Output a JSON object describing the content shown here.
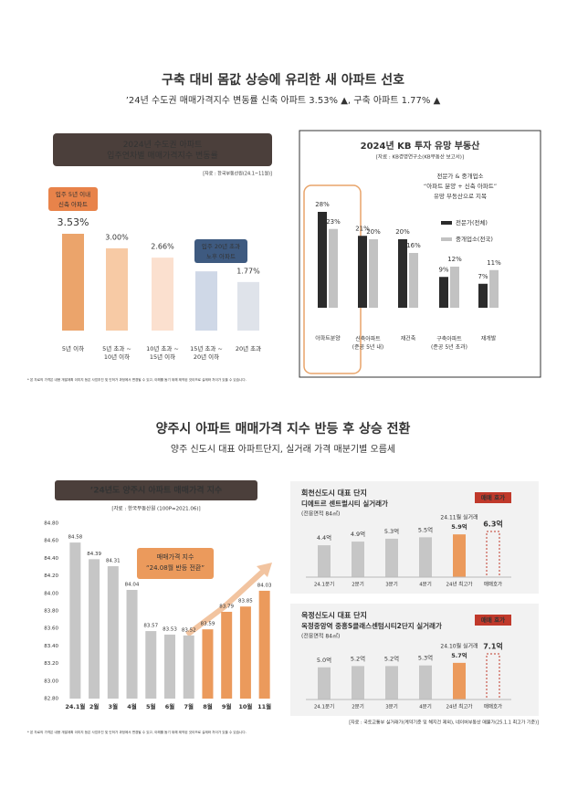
{
  "header1": {
    "title": "구축 대비 몸값 상승에 유리한 새 아파트 선호",
    "subtitle": "’24년 수도권 매매가격지수 변동률 신축 아파트 3.53% ▲, 구축 아파트 1.77% ▲"
  },
  "header2": {
    "title": "양주시 아파트 매매가격 지수 반등 후 상승 전환",
    "subtitle": "양주 신도시 대표 아파트단지, 실거래 가격 매분기별 오름세"
  },
  "footnotes": [
    "* 본 자료의 가격은 내용 개발계획 이미지 등은 사업추진 및 인허가 과정에서 변경될 수 있고, 이해를 돕기 위해 제작된 것이므로 실제와 차이가 있을 수 있습니다.",
    "* 본 자료의 가격은 내용 개발계획 이미지 등은 사업추진 및 인허가 과정에서 변경될 수 있고, 이해를 돕기 위해 제작된 것이므로 실제와 차이가 있을 수 있습니다."
  ],
  "chart_data": [
    {
      "type": "bar",
      "title": "2024년 수도권 아파트\n입주연차별 매매가격지수 변동률",
      "source": "[자료 : 한국부동산원(24.1~11월)]",
      "categories": [
        "5년 이하",
        "5년 초과 ~\n10년 이하",
        "10년 초과 ~\n15년 이하",
        "15년 초과 ~\n20년 이하",
        "20년 초과"
      ],
      "values": [
        3.53,
        3.0,
        2.66,
        2.16,
        1.77
      ],
      "value_labels": [
        "3.53%",
        "3.00%",
        "2.66%",
        "2.16%",
        "1.77%"
      ],
      "colors": [
        "#eba46b",
        "#f7caa5",
        "#fbe0cf",
        "#cfd8e7",
        "#dfe3ea"
      ],
      "annotations": [
        {
          "text": "입주 5년 이내\n신축 아파트",
          "color": "#e8834a"
        },
        {
          "text": "입주 20년 초과\n노후 아파트",
          "color": "#3e5a80"
        }
      ]
    },
    {
      "type": "bar",
      "title": "2024년 KB 투자 유망 부동산",
      "source": "[자료 : KB경영연구소(KB부동산 보고서)]",
      "categories": [
        "아파트분양",
        "신축아파트\n(준공 5년 내)",
        "재건축",
        "구축아파트\n(준공 5년 초과)",
        "재개발"
      ],
      "series": [
        {
          "name": "전문가(전체)",
          "color": "#2b2b2b",
          "values": [
            28,
            21,
            20,
            9,
            7
          ],
          "value_labels": [
            "28%",
            "21%",
            "20%",
            "9%",
            "7%"
          ]
        },
        {
          "name": "중개업소(전국)",
          "color": "#c2c2c2",
          "values": [
            23,
            20,
            16,
            12,
            11
          ],
          "value_labels": [
            "23%",
            "20%",
            "16%",
            "12%",
            "11%"
          ]
        }
      ],
      "annotation": "전문가 & 중개업소\n“아파트 분양 + 신축 아파트”\n유망 부동산으로 지목"
    },
    {
      "type": "bar",
      "title": "’24년도 양주시 아파트 매매가격 지수",
      "source": "[자료 : 한국부동산원 (100P=2021.06)]",
      "categories": [
        "24.1월",
        "2월",
        "3월",
        "4월",
        "5월",
        "6월",
        "7월",
        "8월",
        "9월",
        "10월",
        "11월"
      ],
      "values": [
        84.58,
        84.39,
        84.31,
        84.04,
        83.57,
        83.53,
        83.52,
        83.59,
        83.79,
        83.85,
        84.03
      ],
      "colors": [
        "#c6c6c6",
        "#c6c6c6",
        "#c6c6c6",
        "#c6c6c6",
        "#c6c6c6",
        "#c6c6c6",
        "#c6c6c6",
        "#eb9a5c",
        "#eb9a5c",
        "#eb9a5c",
        "#eb9a5c"
      ],
      "ylim": [
        82.8,
        84.8
      ],
      "yticks": [
        {
          "value": 82.8,
          "label": "82.80"
        },
        {
          "value": 83.0,
          "label": "83.00"
        },
        {
          "value": 83.2,
          "label": "83.20"
        },
        {
          "value": 83.4,
          "label": "83.40"
        },
        {
          "value": 83.6,
          "label": "83.60"
        },
        {
          "value": 83.8,
          "label": "83.80"
        },
        {
          "value": 84.0,
          "label": "84.00"
        },
        {
          "value": 84.2,
          "label": "84.20"
        },
        {
          "value": 84.4,
          "label": "84.40"
        },
        {
          "value": 84.6,
          "label": "84.60"
        },
        {
          "value": 84.8,
          "label": "84.80"
        }
      ],
      "grid": false,
      "annotation": "매매가격 지수\n“24.08월 반등 전환”"
    },
    {
      "type": "bar",
      "label": "회천신도시 대표 단지",
      "title": "디에트르 센트럴시티 실거래가",
      "area": "(전용면적 84㎡)",
      "categories": [
        "24.1분기",
        "2분기",
        "3분기",
        "4분기",
        "24년 최고가",
        "매매호가"
      ],
      "values": [
        4.4,
        4.9,
        5.3,
        5.5,
        5.9,
        6.3
      ],
      "value_labels": [
        "4.4억",
        "4.9억",
        "5.3억",
        "5.5억",
        "5.9억",
        "6.3억"
      ],
      "colors": [
        "#c6c6c6",
        "#c6c6c6",
        "#c6c6c6",
        "#c6c6c6",
        "#eb9a5c",
        "#c0392b"
      ],
      "styles": [
        "solid",
        "solid",
        "solid",
        "solid",
        "solid",
        "dashed"
      ],
      "note": "24.11월 실거래",
      "badge": "매매 호가"
    },
    {
      "type": "bar",
      "label": "옥정신도시 대표 단지",
      "title": "옥정중앙역 중흥S클래스센텀시티2단지 실거래가",
      "area": "(전용면적 84㎡)",
      "categories": [
        "24.1분기",
        "2분기",
        "3분기",
        "4분기",
        "24년 최고가",
        "매매호가"
      ],
      "values": [
        5.0,
        5.2,
        5.2,
        5.3,
        5.7,
        7.1
      ],
      "value_labels": [
        "5.0억",
        "5.2억",
        "5.2억",
        "5.3억",
        "5.7억",
        "7.1억"
      ],
      "colors": [
        "#c6c6c6",
        "#c6c6c6",
        "#c6c6c6",
        "#c6c6c6",
        "#eb9a5c",
        "#c0392b"
      ],
      "styles": [
        "solid",
        "solid",
        "solid",
        "solid",
        "solid",
        "dashed"
      ],
      "note": "24.10월 실거래",
      "badge": "매매 호가",
      "source": "[자료 : 국토교통부 실거래가(계약기준 및 해지건 제외), 네이버부동산 매물가(25.1.1 최고가 기준)]"
    }
  ]
}
